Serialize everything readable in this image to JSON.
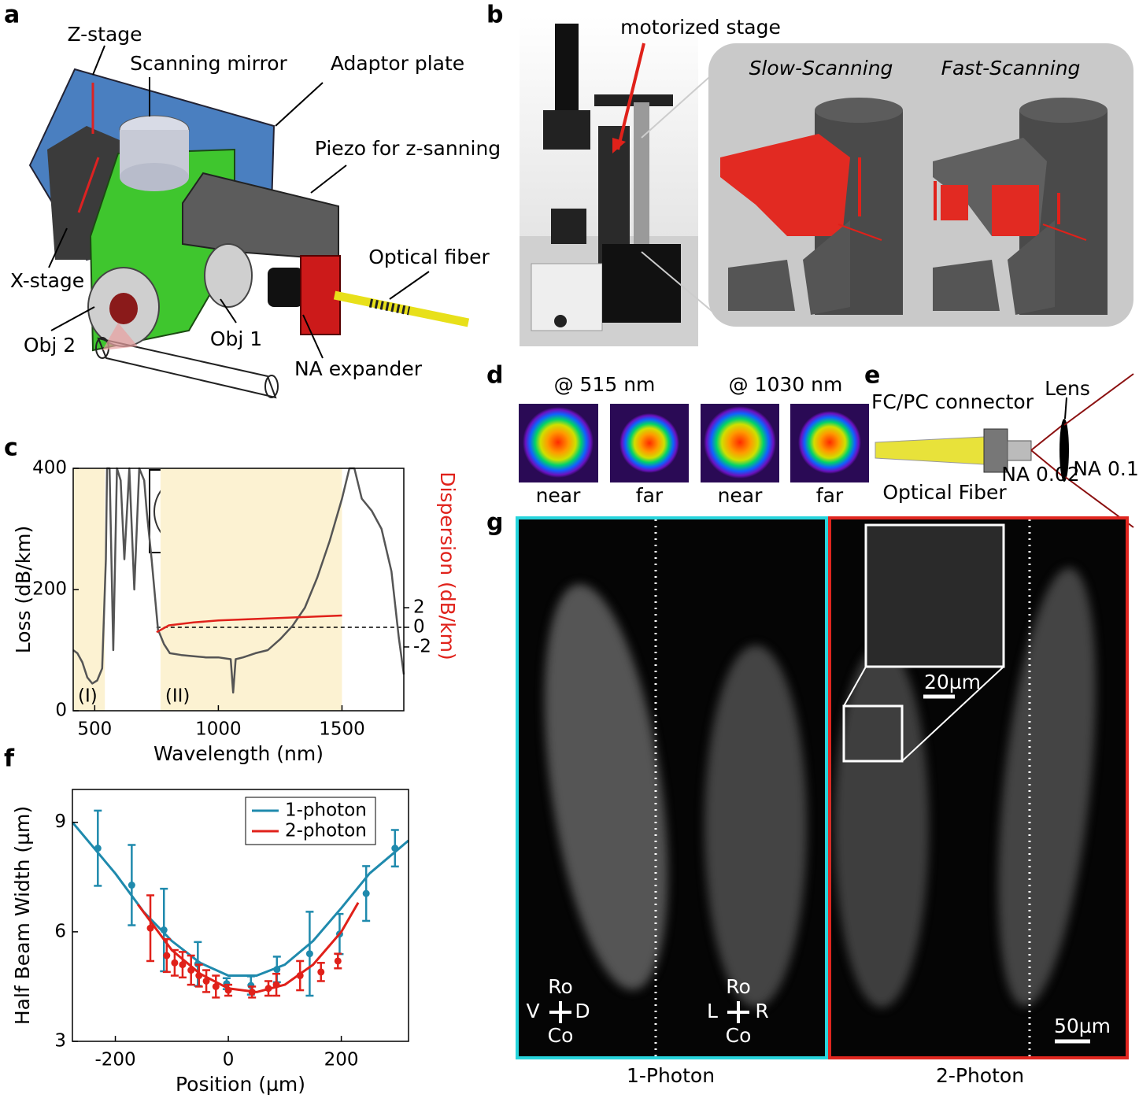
{
  "panels": {
    "a": {
      "label": "a",
      "annotations": [
        "Z-stage",
        "Scanning mirror",
        "Adaptor plate",
        "Piezo for z-sanning",
        "Optical fiber",
        "X-stage",
        "Obj 2",
        "Obj 1",
        "NA expander"
      ]
    },
    "b": {
      "label": "b",
      "annotations": [
        "motorized stage",
        "Slow-Scanning",
        "Fast-Scanning"
      ]
    },
    "d": {
      "label": "d",
      "headers": [
        "@ 515 nm",
        "@ 1030 nm"
      ],
      "captions": [
        "near",
        "far",
        "near",
        "far"
      ]
    },
    "e": {
      "label": "e",
      "annotations": [
        "FC/PC connector",
        "Lens",
        "NA 0.1",
        "NA 0.02",
        "Optical Fiber"
      ]
    },
    "g": {
      "label": "g",
      "inset_scale": "20µm",
      "scale": "50µm",
      "views": [
        {
          "top": "Ro",
          "left": "V",
          "right": "D",
          "bottom": "Co"
        },
        {
          "top": "Ro",
          "left": "L",
          "right": "R",
          "bottom": "Co"
        }
      ],
      "captions": [
        "1-Photon",
        "2-Photon"
      ]
    }
  },
  "chart_data": [
    {
      "type": "line",
      "panel_label": "c",
      "xlabel": "Wavelength (nm)",
      "ylabel": "Loss (dB/km)",
      "y2label": "Dispersion (dB/km)",
      "xlim": [
        413,
        1750
      ],
      "xticks": [
        500,
        1000,
        1500
      ],
      "ylim": [
        0,
        400
      ],
      "yticks": [
        0,
        200,
        400
      ],
      "y2lim": [
        -8.5,
        16.2
      ],
      "y2ticks": [
        -2,
        0,
        2
      ],
      "band_color": "#fcf2d2",
      "bands": [
        {
          "label": "(I)",
          "range": [
            413,
            541
          ]
        },
        {
          "label": "(II)",
          "range": [
            766,
            1500
          ]
        }
      ],
      "reference_line": {
        "value": 0,
        "axis": "y2"
      },
      "series": [
        {
          "color": "#555555",
          "x": [
            413,
            430,
            450,
            470,
            490,
            510,
            530,
            545,
            550,
            560,
            575,
            590,
            605,
            620,
            640,
            660,
            680,
            700,
            710,
            730,
            756,
            780,
            804,
            850,
            900,
            950,
            1000,
            1050,
            1060,
            1070,
            1100,
            1150,
            1200,
            1250,
            1300,
            1350,
            1400,
            1450,
            1500,
            1530,
            1550,
            1580,
            1620,
            1660,
            1700,
            1730,
            1750
          ],
          "values": [
            100,
            95,
            80,
            55,
            45,
            50,
            70,
            250,
            400,
            400,
            100,
            400,
            380,
            250,
            400,
            200,
            400,
            380,
            330,
            250,
            134,
            110,
            95,
            92,
            90,
            88,
            88,
            85,
            30,
            85,
            88,
            95,
            100,
            118,
            140,
            170,
            220,
            280,
            350,
            400,
            400,
            350,
            330,
            300,
            230,
            120,
            60
          ]
        },
        {
          "color": "#e0211a",
          "axis": "y2",
          "x": [
            750,
            800,
            900,
            1000,
            1100,
            1200,
            1300,
            1400,
            1500
          ],
          "values": [
            -0.5,
            0.2,
            0.5,
            0.7,
            0.8,
            0.9,
            1.0,
            1.1,
            1.2
          ]
        }
      ]
    },
    {
      "type": "line",
      "panel_label": "f",
      "xlabel": "Position (µm)",
      "ylabel": "Half Beam Width (µm)",
      "xlim": [
        -276,
        319
      ],
      "xticks": [
        -200,
        0,
        200
      ],
      "ylim": [
        3,
        9.9
      ],
      "yticks": [
        3,
        6,
        9
      ],
      "legend": "upper right",
      "series": [
        {
          "name": "1-photon",
          "color": "#1f8aad",
          "x": [
            -231,
            -171,
            -114,
            -54,
            -3,
            40,
            86,
            144,
            197,
            244,
            295
          ],
          "values": [
            8.29,
            7.28,
            6.05,
            5.12,
            4.58,
            4.53,
            4.97,
            5.4,
            5.94,
            7.05,
            8.29
          ],
          "errors": [
            1.03,
            1.1,
            1.13,
            0.6,
            0.15,
            0.25,
            0.35,
            1.15,
            0.55,
            0.75,
            0.5
          ],
          "fit_x": [
            -276,
            -200,
            -150,
            -100,
            -50,
            0,
            50,
            100,
            150,
            200,
            250,
            319
          ],
          "fit_values": [
            9.0,
            7.6,
            6.55,
            5.75,
            5.15,
            4.8,
            4.8,
            5.1,
            5.75,
            6.65,
            7.6,
            8.5
          ]
        },
        {
          "name": "2-photon",
          "color": "#e0211a",
          "x": [
            -138,
            -109,
            -95,
            -81,
            -66,
            -52,
            -39,
            -22,
            0,
            42,
            71,
            85,
            127,
            164,
            194
          ],
          "values": [
            6.1,
            5.35,
            5.15,
            5.1,
            4.95,
            4.8,
            4.65,
            4.5,
            4.4,
            4.35,
            4.45,
            4.55,
            4.8,
            4.9,
            5.2
          ],
          "errors": [
            0.9,
            0.45,
            0.35,
            0.35,
            0.4,
            0.3,
            0.3,
            0.3,
            0.15,
            0.15,
            0.2,
            0.3,
            0.4,
            0.25,
            0.2
          ],
          "fit_x": [
            -160,
            -100,
            -50,
            0,
            50,
            100,
            150,
            200,
            230
          ],
          "fit_values": [
            6.75,
            5.5,
            4.85,
            4.45,
            4.35,
            4.55,
            5.1,
            6.0,
            6.8
          ]
        }
      ]
    }
  ]
}
